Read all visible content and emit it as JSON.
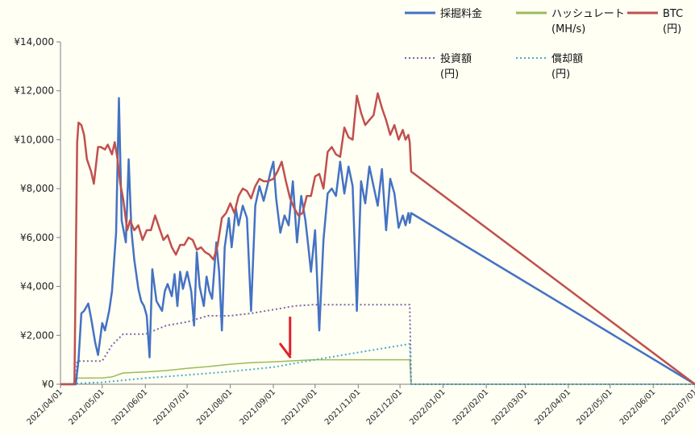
{
  "chart_data": {
    "type": "line",
    "title": "",
    "xlabel": "",
    "ylabel": "",
    "ylim": [
      0,
      14000
    ],
    "xlim": [
      "2021-04-01",
      "2022-07-01"
    ],
    "y_ticks": [
      "¥0",
      "¥2,000",
      "¥4,000",
      "¥6,000",
      "¥8,000",
      "¥10,000",
      "¥12,000",
      "¥14,000"
    ],
    "x_ticks": [
      "2021/04/01",
      "2021/05/01",
      "2021/06/01",
      "2021/07/01",
      "2021/08/01",
      "2021/09/01",
      "2021/10/01",
      "2021/11/01",
      "2021/12/01",
      "2022/01/01",
      "2022/02/01",
      "2022/03/01",
      "2022/04/01",
      "2022/05/01",
      "2022/06/01",
      "2022/07/01"
    ],
    "grid": false,
    "legend_position": "top-right",
    "series": [
      {
        "name": "採掘料金",
        "color": "#4472c4",
        "style": "solid",
        "x": [
          "2021-04-01",
          "2021-04-12",
          "2021-04-14",
          "2021-04-16",
          "2021-04-18",
          "2021-04-21",
          "2021-04-23",
          "2021-04-26",
          "2021-04-28",
          "2021-05-01",
          "2021-05-03",
          "2021-05-06",
          "2021-05-08",
          "2021-05-11",
          "2021-05-13",
          "2021-05-15",
          "2021-05-18",
          "2021-05-20",
          "2021-05-22",
          "2021-05-24",
          "2021-05-27",
          "2021-05-29",
          "2021-05-31",
          "2021-06-02",
          "2021-06-04",
          "2021-06-06",
          "2021-06-09",
          "2021-06-11",
          "2021-06-13",
          "2021-06-15",
          "2021-06-17",
          "2021-06-20",
          "2021-06-22",
          "2021-06-24",
          "2021-06-26",
          "2021-06-28",
          "2021-07-01",
          "2021-07-04",
          "2021-07-06",
          "2021-07-08",
          "2021-07-10",
          "2021-07-13",
          "2021-07-15",
          "2021-07-17",
          "2021-07-19",
          "2021-07-22",
          "2021-07-24",
          "2021-07-26",
          "2021-07-28",
          "2021-07-31",
          "2021-08-02",
          "2021-08-05",
          "2021-08-07",
          "2021-08-10",
          "2021-08-13",
          "2021-08-16",
          "2021-08-19",
          "2021-08-22",
          "2021-08-25",
          "2021-08-28",
          "2021-08-30",
          "2021-09-01",
          "2021-09-03",
          "2021-09-06",
          "2021-09-09",
          "2021-09-12",
          "2021-09-15",
          "2021-09-18",
          "2021-09-21",
          "2021-09-24",
          "2021-09-26",
          "2021-09-28",
          "2021-10-01",
          "2021-10-04",
          "2021-10-07",
          "2021-10-10",
          "2021-10-13",
          "2021-10-16",
          "2021-10-19",
          "2021-10-22",
          "2021-10-25",
          "2021-10-28",
          "2021-10-31",
          "2021-11-03",
          "2021-11-06",
          "2021-11-09",
          "2021-11-12",
          "2021-11-15",
          "2021-11-18",
          "2021-11-21",
          "2021-11-24",
          "2021-11-27",
          "2021-11-30",
          "2021-12-03",
          "2021-12-05",
          "2021-12-07",
          "2021-12-08",
          "2021-12-09",
          "2022-07-01"
        ],
        "y": [
          0,
          0,
          1000,
          2900,
          3000,
          3300,
          2700,
          1700,
          1200,
          2500,
          2200,
          3000,
          3800,
          6200,
          11700,
          6700,
          5800,
          9200,
          6300,
          5100,
          3900,
          3400,
          3200,
          2800,
          1100,
          4700,
          3400,
          3200,
          3000,
          3800,
          4100,
          3600,
          4500,
          3200,
          4600,
          3900,
          4600,
          3800,
          2400,
          5400,
          4000,
          3200,
          4400,
          3800,
          3500,
          5800,
          4600,
          2200,
          5600,
          6800,
          5600,
          7200,
          6500,
          7300,
          6800,
          3000,
          7300,
          8100,
          7500,
          8200,
          8700,
          9100,
          7600,
          6200,
          6900,
          6500,
          8300,
          5800,
          7700,
          6700,
          5700,
          4600,
          6300,
          2200,
          5900,
          7800,
          8000,
          7700,
          9100,
          7800,
          8900,
          8100,
          3000,
          8300,
          7400,
          8900,
          8100,
          7300,
          8800,
          6300,
          8400,
          7800,
          6400,
          6900,
          6500,
          7000,
          6600,
          7000,
          0
        ],
        "line_width": 2.5
      },
      {
        "name": "ハッシュレート\n(MH/s)",
        "color": "#9bbb59",
        "style": "solid",
        "x": [
          "2021-04-01",
          "2021-04-12",
          "2021-04-13",
          "2021-05-01",
          "2021-05-08",
          "2021-05-16",
          "2021-06-01",
          "2021-06-16",
          "2021-07-01",
          "2021-07-16",
          "2021-08-01",
          "2021-08-16",
          "2021-09-01",
          "2021-09-16",
          "2021-09-29",
          "2021-12-08",
          "2021-12-09",
          "2022-07-01"
        ],
        "y": [
          0,
          0,
          250,
          260,
          300,
          460,
          500,
          560,
          650,
          720,
          820,
          880,
          920,
          960,
          1000,
          1000,
          0,
          0
        ],
        "line_width": 1.5
      },
      {
        "name": "BTC\n(円)",
        "color": "#c0504d",
        "style": "solid",
        "x": [
          "2021-04-01",
          "2021-04-11",
          "2021-04-13",
          "2021-04-14",
          "2021-04-16",
          "2021-04-18",
          "2021-04-20",
          "2021-04-23",
          "2021-04-25",
          "2021-04-28",
          "2021-04-30",
          "2021-05-03",
          "2021-05-05",
          "2021-05-08",
          "2021-05-10",
          "2021-05-12",
          "2021-05-14",
          "2021-05-16",
          "2021-05-19",
          "2021-05-21",
          "2021-05-24",
          "2021-05-27",
          "2021-05-30",
          "2021-06-02",
          "2021-06-05",
          "2021-06-08",
          "2021-06-11",
          "2021-06-14",
          "2021-06-17",
          "2021-06-20",
          "2021-06-23",
          "2021-06-26",
          "2021-06-29",
          "2021-07-02",
          "2021-07-05",
          "2021-07-08",
          "2021-07-11",
          "2021-07-14",
          "2021-07-17",
          "2021-07-20",
          "2021-07-23",
          "2021-07-26",
          "2021-07-29",
          "2021-08-01",
          "2021-08-04",
          "2021-08-07",
          "2021-08-10",
          "2021-08-13",
          "2021-08-16",
          "2021-08-19",
          "2021-08-22",
          "2021-08-25",
          "2021-08-28",
          "2021-09-01",
          "2021-09-04",
          "2021-09-07",
          "2021-09-10",
          "2021-09-13",
          "2021-09-16",
          "2021-09-19",
          "2021-09-22",
          "2021-09-25",
          "2021-09-28",
          "2021-10-01",
          "2021-10-04",
          "2021-10-07",
          "2021-10-10",
          "2021-10-13",
          "2021-10-16",
          "2021-10-19",
          "2021-10-22",
          "2021-10-25",
          "2021-10-28",
          "2021-10-31",
          "2021-11-03",
          "2021-11-06",
          "2021-11-09",
          "2021-11-12",
          "2021-11-15",
          "2021-11-18",
          "2021-11-21",
          "2021-11-24",
          "2021-11-27",
          "2021-11-30",
          "2021-12-03",
          "2021-12-05",
          "2021-12-07",
          "2021-12-08",
          "2021-12-09",
          "2022-07-01"
        ],
        "y": [
          0,
          0,
          9900,
          10700,
          10600,
          10200,
          9200,
          8700,
          8200,
          9700,
          9700,
          9600,
          9800,
          9400,
          9900,
          9200,
          8200,
          7600,
          6300,
          6700,
          6300,
          6500,
          5900,
          6300,
          6300,
          6900,
          6400,
          5900,
          6100,
          5600,
          5300,
          5700,
          5700,
          6000,
          5900,
          5500,
          5600,
          5400,
          5300,
          5100,
          5700,
          6800,
          7000,
          7400,
          7000,
          7700,
          8000,
          7900,
          7600,
          8100,
          8400,
          8300,
          8300,
          8400,
          8700,
          9100,
          8300,
          7600,
          7200,
          6900,
          7000,
          7700,
          7700,
          8500,
          8600,
          8000,
          9500,
          9700,
          9400,
          9300,
          10500,
          10100,
          10000,
          11800,
          11100,
          10600,
          10800,
          11000,
          11900,
          11300,
          10800,
          10200,
          10600,
          10000,
          10400,
          10000,
          10200,
          9900,
          8700,
          0
        ],
        "line_width": 2.5
      },
      {
        "name": "投資額\n(円)",
        "color": "#8064a2",
        "style": "dotted",
        "x": [
          "2021-04-01",
          "2021-04-12",
          "2021-04-13",
          "2021-05-01",
          "2021-05-08",
          "2021-05-16",
          "2021-06-01",
          "2021-06-16",
          "2021-07-01",
          "2021-07-16",
          "2021-08-01",
          "2021-08-16",
          "2021-09-01",
          "2021-09-16",
          "2021-09-29",
          "2021-12-08",
          "2021-12-09",
          "2022-07-01"
        ],
        "y": [
          0,
          0,
          950,
          950,
          1600,
          2050,
          2050,
          2400,
          2550,
          2800,
          2800,
          2900,
          3050,
          3200,
          3250,
          3250,
          0,
          0
        ],
        "line_width": 2
      },
      {
        "name": "償却額\n(円)",
        "color": "#4bacc6",
        "style": "dotted",
        "x": [
          "2021-04-01",
          "2021-05-01",
          "2021-06-01",
          "2021-07-01",
          "2021-08-01",
          "2021-09-01",
          "2021-10-01",
          "2021-11-01",
          "2021-12-08",
          "2021-12-09",
          "2022-07-01"
        ],
        "y": [
          0,
          80,
          250,
          380,
          520,
          700,
          1000,
          1300,
          1650,
          0,
          0
        ],
        "line_width": 2
      }
    ],
    "annotations": [
      {
        "type": "arrow",
        "color": "#e0202a",
        "x": "2021-09-13",
        "y": 1050,
        "description": "red downward arrow"
      }
    ]
  }
}
